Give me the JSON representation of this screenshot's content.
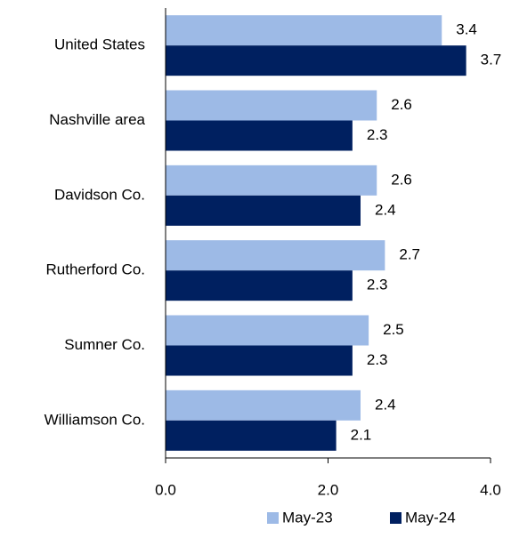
{
  "chart_data": {
    "type": "hbar",
    "categories": [
      "United States",
      "Nashville area",
      "Davidson Co.",
      "Rutherford Co.",
      "Sumner Co.",
      "Williamson Co."
    ],
    "series": [
      {
        "name": "May-23",
        "color": "#9dbae6",
        "values": [
          3.4,
          2.6,
          2.6,
          2.7,
          2.5,
          2.4
        ]
      },
      {
        "name": "May-24",
        "color": "#002060",
        "values": [
          3.7,
          2.3,
          2.4,
          2.3,
          2.3,
          2.1
        ]
      }
    ],
    "xlim": [
      0,
      4
    ],
    "xticks": [
      {
        "value": 0,
        "label": "0.0"
      },
      {
        "value": 2,
        "label": "2.0"
      },
      {
        "value": 4,
        "label": "4.0"
      }
    ],
    "legend": "bottom"
  }
}
